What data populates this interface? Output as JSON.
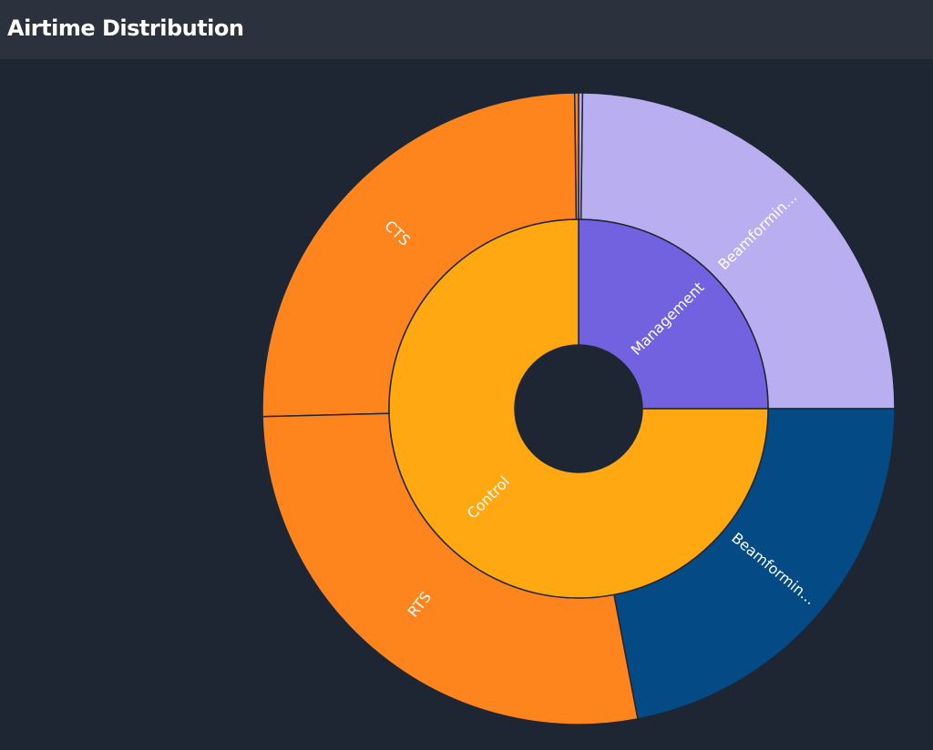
{
  "header": {
    "title": "Airtime Distribution"
  },
  "chart_data": {
    "type": "sunburst",
    "title": "Airtime Distribution",
    "inner_ring": [
      {
        "name": "Management",
        "value": 25,
        "color": "#7262e0"
      },
      {
        "name": "Control",
        "value": 75,
        "color": "#ffa812"
      }
    ],
    "outer_ring": [
      {
        "name": "Beamformin...",
        "parent": "Management",
        "value": 24.8,
        "color": "#b9aef0"
      },
      {
        "name": "Beamformin...",
        "parent": "Control",
        "value": 22,
        "color": "#044a85"
      },
      {
        "name": "RTS",
        "parent": "Control",
        "value": 27.6,
        "color": "#fe851e"
      },
      {
        "name": "CTS",
        "parent": "Control",
        "value": 25.2,
        "color": "#fe851e"
      },
      {
        "name": "",
        "parent": "Control",
        "value": 0.2,
        "color": "#fe851e"
      },
      {
        "name": "",
        "parent": "Management",
        "value": 0.2,
        "color": "#b9aef0"
      }
    ]
  }
}
